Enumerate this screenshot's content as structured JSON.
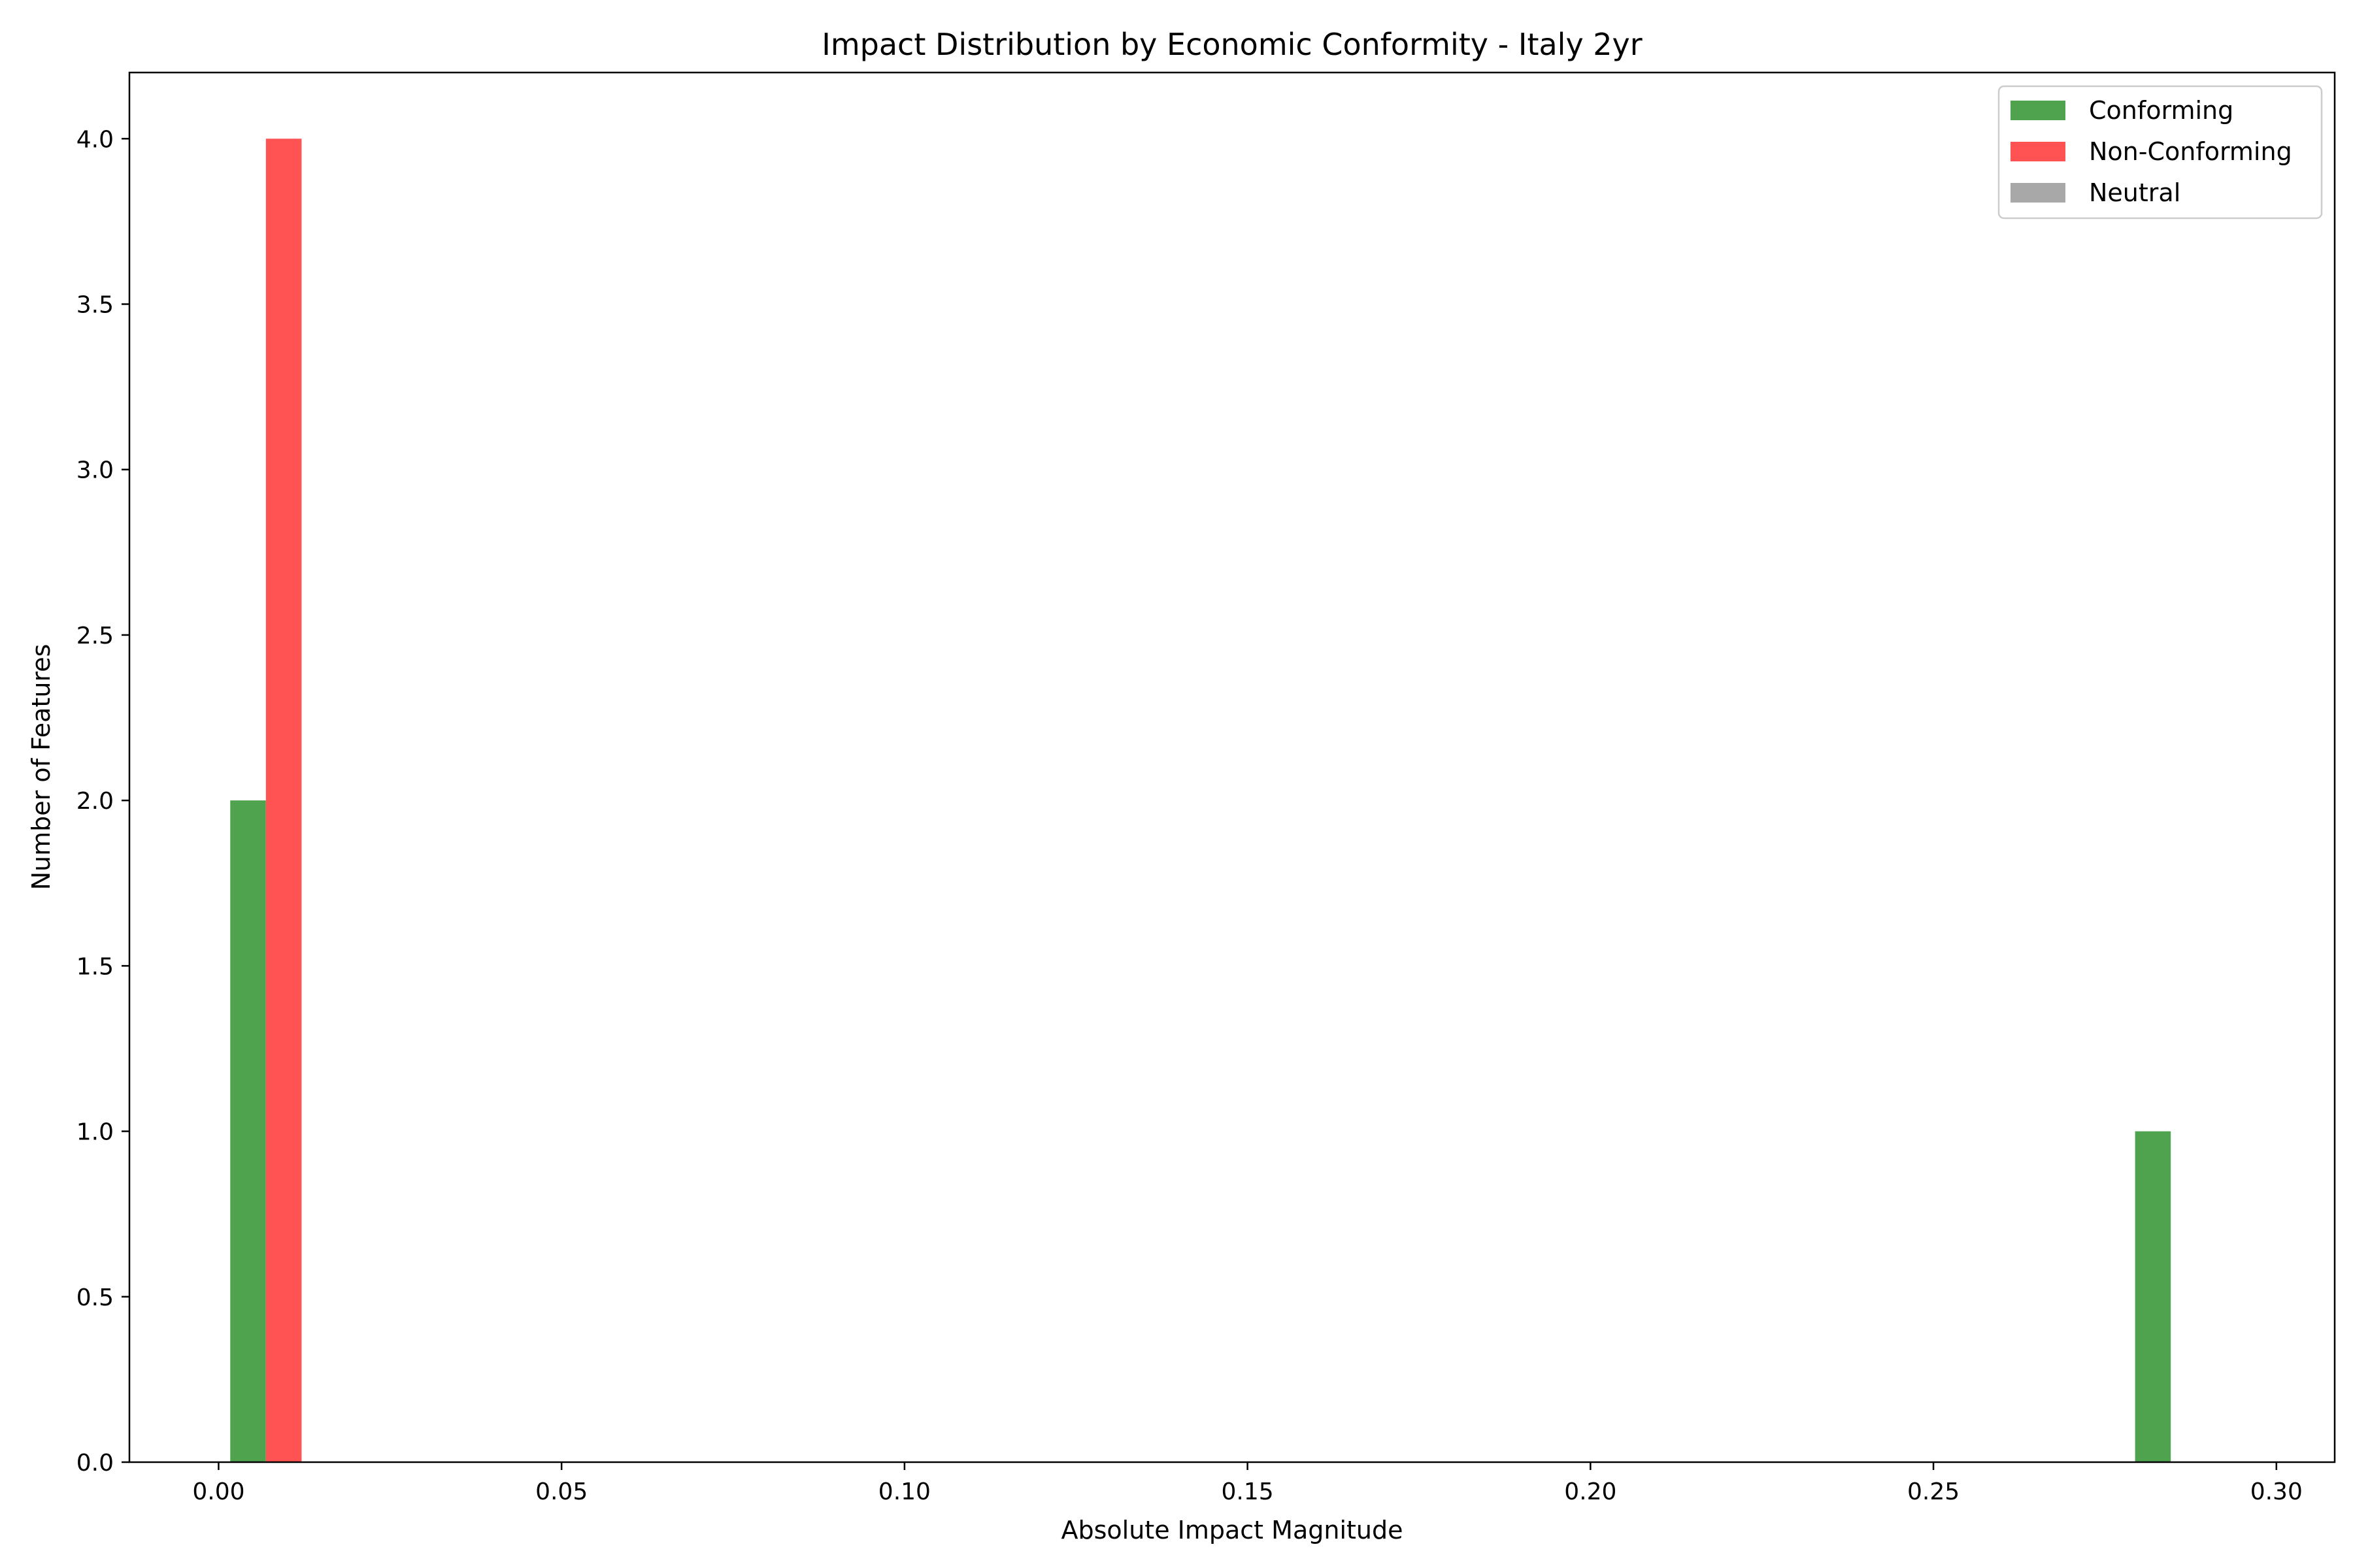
{
  "chart_data": {
    "type": "bar",
    "title": "Impact Distribution by Economic Conformity - Italy 2yr",
    "xlabel": "Absolute Impact Magnitude",
    "ylabel": "Number of Features",
    "xlim": [
      -0.013,
      0.3085
    ],
    "ylim": [
      0,
      4.2
    ],
    "x_ticks": [
      "0.00",
      "0.05",
      "0.10",
      "0.15",
      "0.20",
      "0.25",
      "0.30"
    ],
    "x_tick_values": [
      0.0,
      0.05,
      0.1,
      0.15,
      0.2,
      0.25,
      0.3
    ],
    "y_ticks": [
      "0.0",
      "0.5",
      "1.0",
      "1.5",
      "2.0",
      "2.5",
      "3.0",
      "3.5",
      "4.0"
    ],
    "y_tick_values": [
      0.0,
      0.5,
      1.0,
      1.5,
      2.0,
      2.5,
      3.0,
      3.5,
      4.0
    ],
    "grid": false,
    "legend_position": "top-right",
    "series": [
      {
        "name": "Conforming",
        "color": "#4fa34f",
        "bars": [
          {
            "x0": 0.0017,
            "x1": 0.0069,
            "value": 2
          },
          {
            "x0": 0.2794,
            "x1": 0.2846,
            "value": 1
          }
        ]
      },
      {
        "name": "Non-Conforming",
        "color": "#ff5252",
        "bars": [
          {
            "x0": 0.0069,
            "x1": 0.0121,
            "value": 4
          }
        ]
      },
      {
        "name": "Neutral",
        "color": "#a8a8a8",
        "bars": []
      }
    ]
  }
}
